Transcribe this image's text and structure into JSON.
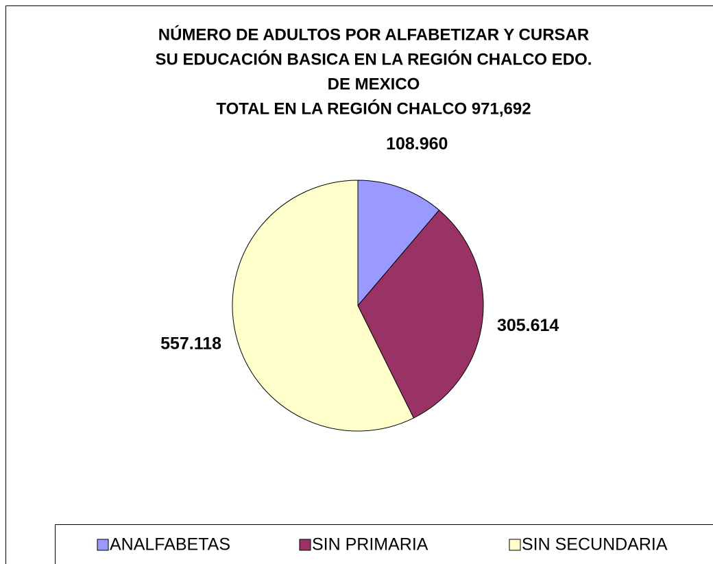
{
  "chart_data": {
    "type": "pie",
    "title": [
      "NÚMERO DE ADULTOS POR ALFABETIZAR Y CURSAR",
      "SU EDUCACIÓN BASICA EN LA REGIÓN CHALCO EDO.",
      "DE MEXICO",
      "TOTAL EN LA REGIÓN CHALCO 971,692"
    ],
    "categories": [
      "ANALFABETAS",
      "SIN PRIMARIA",
      "SIN SECUNDARIA"
    ],
    "values": [
      108960,
      305614,
      557118
    ],
    "value_labels": [
      "108.960",
      "305.614",
      "557.118"
    ],
    "colors": [
      "#9999ff",
      "#993366",
      "#ffffcc"
    ],
    "legend": "bottom"
  }
}
